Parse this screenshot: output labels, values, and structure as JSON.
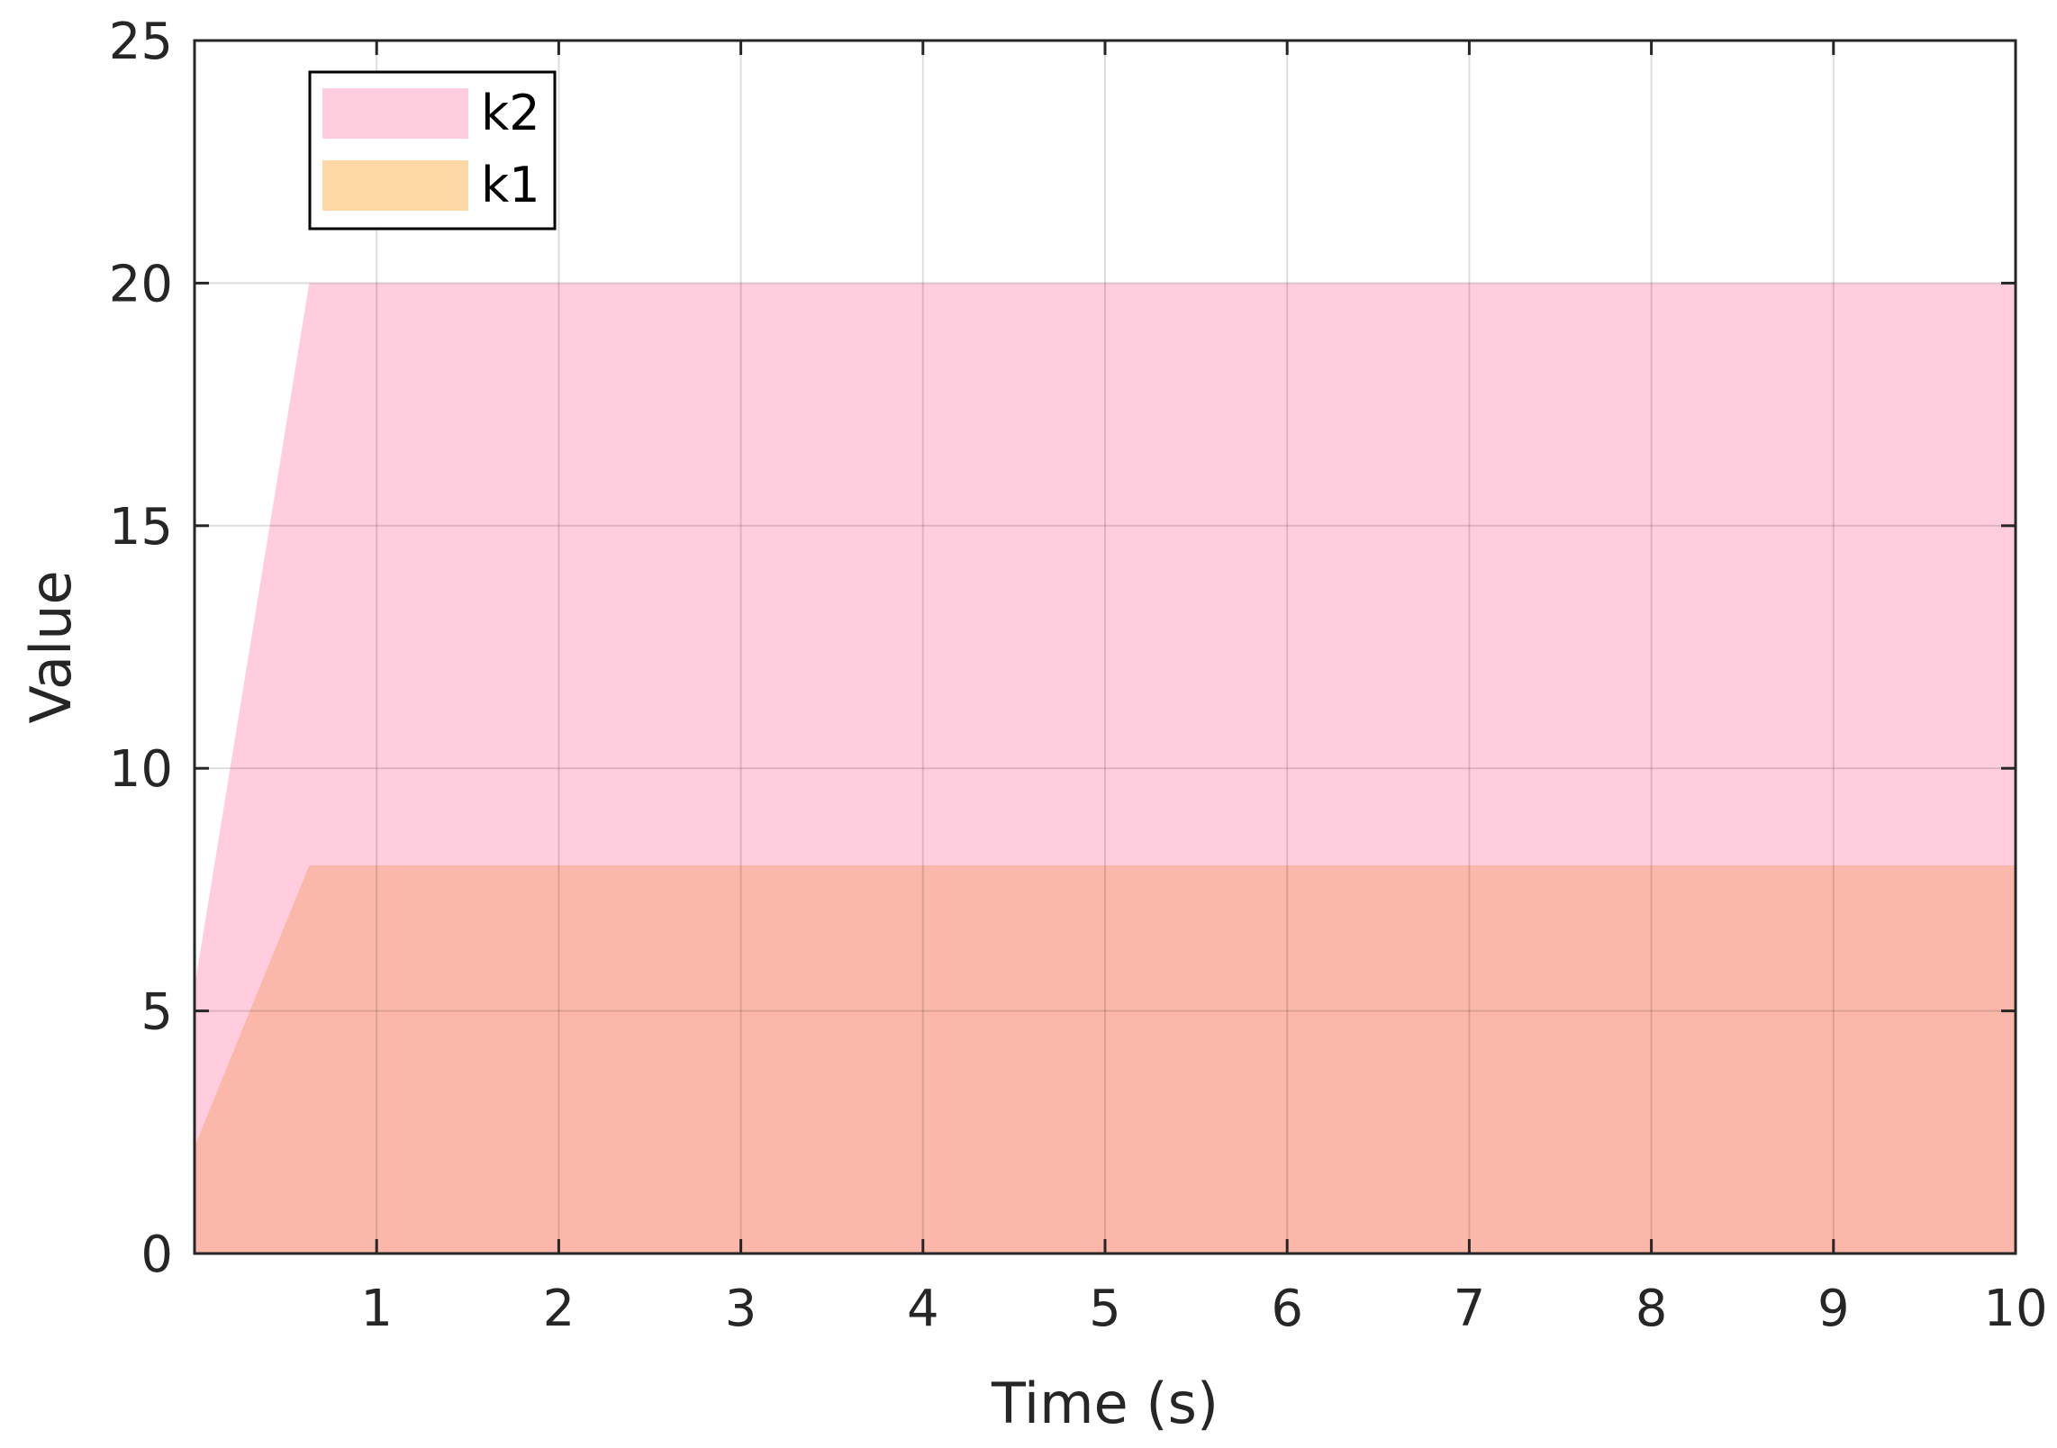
{
  "chart_data": {
    "type": "area",
    "title": "",
    "xlabel": "Time (s)",
    "ylabel": "Value",
    "xlim": [
      0,
      10
    ],
    "ylim": [
      0,
      25
    ],
    "xticks": [
      1,
      2,
      3,
      4,
      5,
      6,
      7,
      8,
      9,
      10
    ],
    "yticks": [
      0,
      5,
      10,
      15,
      20,
      25
    ],
    "grid": true,
    "legend_position": "top-left",
    "series": [
      {
        "name": "k2",
        "color": "#FFCDDE",
        "x": [
          0,
          0.63,
          10
        ],
        "y": [
          5.5,
          20,
          20
        ]
      },
      {
        "name": "k1",
        "color": "#FFD8A8",
        "x": [
          0,
          0.63,
          10
        ],
        "y": [
          2.2,
          8,
          8
        ]
      }
    ],
    "overlap_color": "#FBB8AA"
  }
}
